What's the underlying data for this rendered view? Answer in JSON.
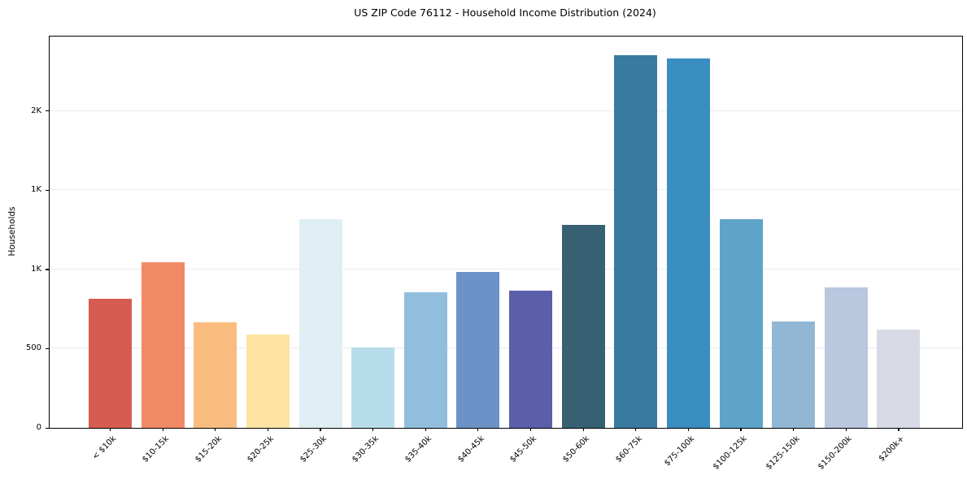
{
  "chart_data": {
    "type": "bar",
    "title": "US ZIP Code 76112 - Household Income Distribution (2024)",
    "xlabel": "",
    "ylabel": "Households",
    "categories": [
      "< $10k",
      "$10-15k",
      "$15-20k",
      "$20-25k",
      "$25-30k",
      "$30-35k",
      "$35-40k",
      "$40-45k",
      "$45-50k",
      "$50-60k",
      "$60-75k",
      "$75-100k",
      "$100-125k",
      "$125-150k",
      "$150-200k",
      "$200k+"
    ],
    "values": [
      815,
      1045,
      668,
      590,
      1315,
      508,
      855,
      985,
      868,
      1280,
      2350,
      2330,
      1315,
      672,
      885,
      620
    ],
    "bar_colors": [
      "#d65b50",
      "#f08a66",
      "#fabc7e",
      "#fce3a2",
      "#dfeef3",
      "#b7dcea",
      "#92bedd",
      "#6b93c7",
      "#5b5fa9",
      "#376172",
      "#387aa0",
      "#398dc1",
      "#5da4c8",
      "#92b7d4",
      "#b9c7df",
      "#d7d9e5"
    ],
    "ylim": [
      0,
      2470
    ],
    "yticks": [
      {
        "value": 0,
        "label": "0"
      },
      {
        "value": 500,
        "label": "500"
      },
      {
        "value": 1000,
        "label": "1K"
      },
      {
        "value": 1500,
        "label": "1K"
      },
      {
        "value": 2000,
        "label": "2K"
      }
    ],
    "grid": "horizontal",
    "gridline_color": "#ebebf2",
    "axis_color": "#000000",
    "background": "#ffffff",
    "legend_position": "none",
    "x_tick_rotation_deg": 45
  }
}
